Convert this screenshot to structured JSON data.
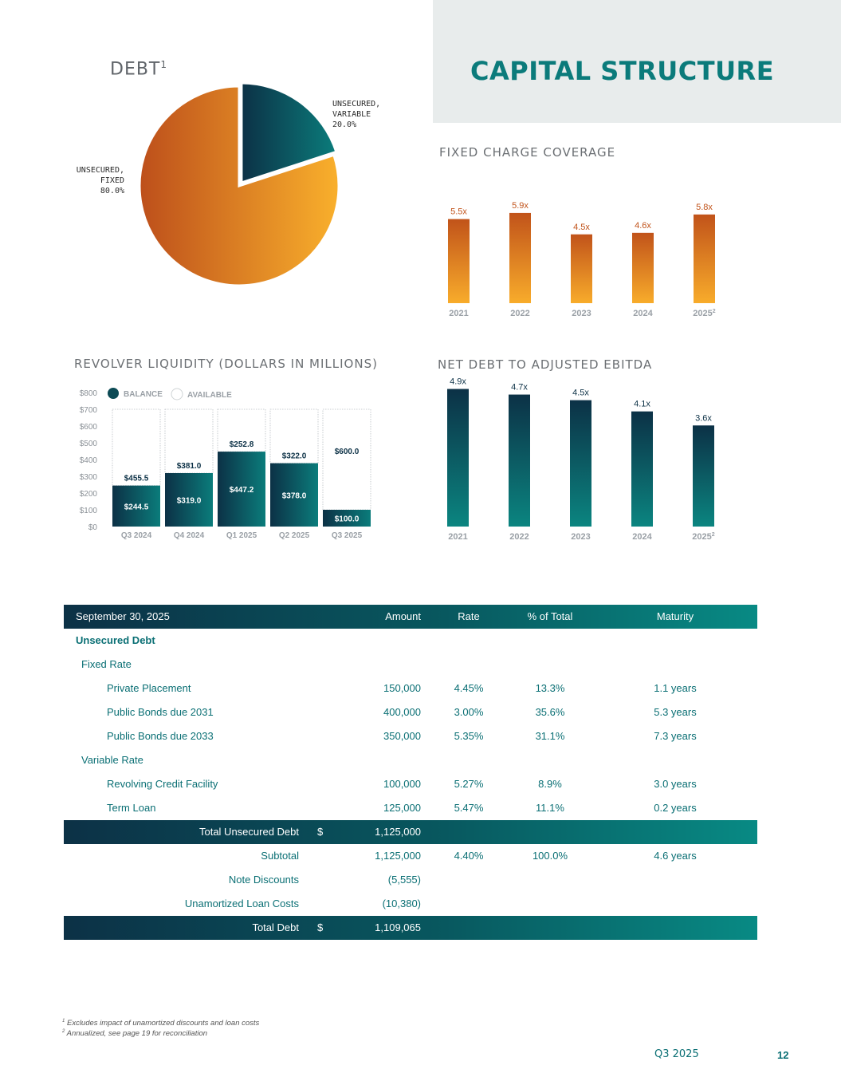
{
  "page": {
    "title": "CAPITAL STRUCTURE",
    "quarter": "Q3 2025",
    "page_number": "12",
    "footnotes": [
      {
        "mark": "1",
        "text": "Excludes impact of unamortized discounts and loan costs"
      },
      {
        "mark": "2",
        "text": "Annualized, see page 19 for reconciliation"
      }
    ]
  },
  "colors": {
    "teal_dark": "#0c3146",
    "teal": "#088a84",
    "orange_dark": "#c1531a",
    "orange_light": "#f8ac2b"
  },
  "debt_title": "DEBT",
  "debt_title_sup": "1",
  "fcc_title": "FIXED CHARGE COVERAGE",
  "rl_title": "REVOLVER LIQUIDITY (DOLLARS IN MILLIONS)",
  "nd_title": "NET DEBT TO ADJUSTED EBITDA",
  "chart_data": [
    {
      "type": "pie",
      "title": "DEBT",
      "slices": [
        {
          "label": "UNSECURED,\nVARIABLE\n20.0%",
          "value": 20.0
        },
        {
          "label": "UNSECURED,\nFIXED\n80.0%",
          "value": 80.0
        }
      ]
    },
    {
      "type": "bar",
      "title": "FIXED CHARGE COVERAGE",
      "categories": [
        "2021",
        "2022",
        "2023",
        "2024",
        "2025"
      ],
      "category_sup": [
        "",
        "",
        "",
        "",
        "2"
      ],
      "values": [
        5.5,
        5.9,
        4.5,
        4.6,
        5.8
      ],
      "value_labels": [
        "5.5x",
        "5.9x",
        "4.5x",
        "4.6x",
        "5.8x"
      ],
      "ylim": [
        0,
        6
      ]
    },
    {
      "type": "bar",
      "title": "REVOLVER LIQUIDITY (DOLLARS IN MILLIONS)",
      "categories": [
        "Q3 2024",
        "Q4 2024",
        "Q1 2025",
        "Q2 2025",
        "Q3 2025"
      ],
      "yticks": [
        "$0",
        "$100",
        "$200",
        "$300",
        "$400",
        "$500",
        "$600",
        "$700",
        "$800"
      ],
      "ylim": [
        0,
        800
      ],
      "legend": [
        "BALANCE",
        "AVAILABLE"
      ],
      "legend_position": "top",
      "series": [
        {
          "name": "BALANCE",
          "values": [
            244.5,
            319.0,
            447.2,
            378.0,
            100.0
          ],
          "labels": [
            "$244.5",
            "$319.0",
            "$447.2",
            "$378.0",
            "$100.0"
          ]
        },
        {
          "name": "AVAILABLE",
          "values": [
            455.5,
            381.0,
            252.8,
            322.0,
            600.0
          ],
          "labels": [
            "$455.5",
            "$381.0",
            "$252.8",
            "$322.0",
            "$600.0"
          ]
        }
      ]
    },
    {
      "type": "bar",
      "title": "NET DEBT TO ADJUSTED EBITDA",
      "categories": [
        "2021",
        "2022",
        "2023",
        "2024",
        "2025"
      ],
      "category_sup": [
        "",
        "",
        "",
        "",
        "2"
      ],
      "values": [
        4.9,
        4.7,
        4.5,
        4.1,
        3.6
      ],
      "value_labels": [
        "4.9x",
        "4.7x",
        "4.5x",
        "4.1x",
        "3.6x"
      ],
      "ylim": [
        0,
        5
      ]
    }
  ],
  "table": {
    "headers": {
      "date": "September 30, 2025",
      "amount": "Amount",
      "rate": "Rate",
      "pct": "% of Total",
      "maturity": "Maturity"
    },
    "rows": [
      {
        "kind": "section",
        "label": "Unsecured Debt",
        "level": 0
      },
      {
        "kind": "group",
        "label": "Fixed Rate",
        "level": 1
      },
      {
        "kind": "item",
        "label": "Private Placement",
        "level": 2,
        "amount": "150,000",
        "rate": "4.45%",
        "pct": "13.3%",
        "maturity": "1.1 years"
      },
      {
        "kind": "item",
        "label": "Public Bonds due 2031",
        "level": 2,
        "amount": "400,000",
        "rate": "3.00%",
        "pct": "35.6%",
        "maturity": "5.3 years"
      },
      {
        "kind": "item",
        "label": "Public Bonds due 2033",
        "level": 2,
        "amount": "350,000",
        "rate": "5.35%",
        "pct": "31.1%",
        "maturity": "7.3 years"
      },
      {
        "kind": "group",
        "label": "Variable Rate",
        "level": 1
      },
      {
        "kind": "item",
        "label": "Revolving Credit Facility",
        "level": 2,
        "amount": "100,000",
        "rate": "5.27%",
        "pct": "8.9%",
        "maturity": "3.0 years"
      },
      {
        "kind": "item",
        "label": "Term Loan",
        "level": 2,
        "amount": "125,000",
        "rate": "5.47%",
        "pct": "11.1%",
        "maturity": "0.2 years"
      },
      {
        "kind": "total",
        "label": "Total Unsecured Debt",
        "dollar": "$",
        "amount": "1,125,000"
      },
      {
        "kind": "sub",
        "label": "Subtotal",
        "amount": "1,125,000",
        "rate": "4.40%",
        "pct": "100.0%",
        "maturity": "4.6 years"
      },
      {
        "kind": "sub",
        "label": "Note Discounts",
        "amount": "(5,555)"
      },
      {
        "kind": "sub",
        "label": "Unamortized Loan Costs",
        "amount": "(10,380)"
      },
      {
        "kind": "total",
        "label": "Total Debt",
        "dollar": "$",
        "amount": "1,109,065"
      }
    ]
  }
}
